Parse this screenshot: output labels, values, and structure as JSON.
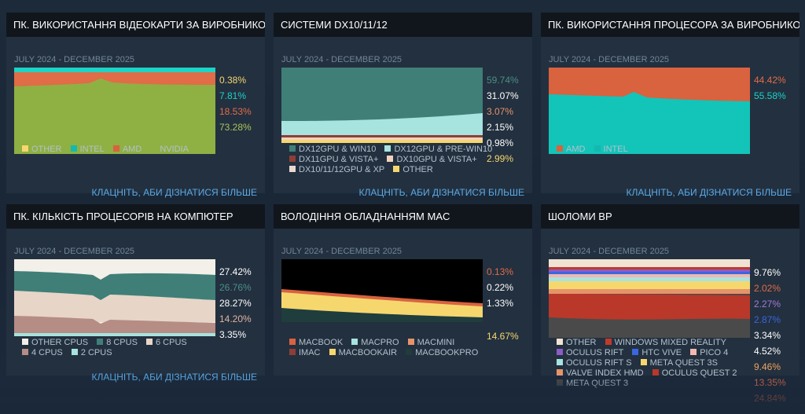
{
  "panels": [
    {
      "title": "ПК. ВИКОРИСТАННЯ ВІДЕОКАРТИ ЗА ВИРОБНИКОМ",
      "range": "JULY 2024 - DECEMBER 2025",
      "values": [
        {
          "text": "0.38%",
          "color": "#f5d76e"
        },
        {
          "text": "7.81%",
          "color": "#1dd3c6"
        },
        {
          "text": "18.53%",
          "color": "#e06c48"
        },
        {
          "text": "73.28%",
          "color": "#a8c55a"
        }
      ],
      "legend": [
        [
          {
            "label": "OTHER",
            "color": "#f5d76e"
          },
          {
            "label": "INTEL",
            "color": "#13b9b0"
          },
          {
            "label": "AMD",
            "color": "#d9623f"
          },
          {
            "label": "NVIDIA",
            "color": "#8fb043"
          }
        ]
      ],
      "link": "КЛАЦНІТЬ, АБИ ДІЗНАТИСЯ БІЛЬШЕ"
    },
    {
      "title": "СИСТЕМИ DX10/11/12",
      "range": "JULY 2024 - DECEMBER 2025",
      "values": [
        {
          "text": "59.74%",
          "color": "#4a8f85"
        },
        {
          "text": "31.07%",
          "color": "#ffffff"
        },
        {
          "text": "3.07%",
          "color": "#e5946a"
        },
        {
          "text": "2.15%",
          "color": "#ffffff"
        },
        {
          "text": "0.98%",
          "color": "#ffffff"
        },
        {
          "text": "2.99%",
          "color": "#f5d76e"
        }
      ],
      "legend": [
        [
          {
            "label": "DX12GPU & WIN10",
            "color": "#3f7f77"
          },
          {
            "label": "DX12GPU & PRE-WIN10",
            "color": "#a7e3df"
          }
        ],
        [
          {
            "label": "DX11GPU & VISTA+",
            "color": "#8e3e36"
          },
          {
            "label": "DX10GPU & VISTA+",
            "color": "#f1d2bf"
          }
        ],
        [
          {
            "label": "DX10/11/12GPU & XP",
            "color": "#e9d9cf"
          },
          {
            "label": "OTHER",
            "color": "#f5d76e"
          }
        ]
      ],
      "link": "КЛАЦНІТЬ, АБИ ДІЗНАТИСЯ БІЛЬШЕ"
    },
    {
      "title": "ПК. ВИКОРИСТАННЯ ПРОЦЕСОРА ЗА ВИРОБНИКОМ",
      "range": "JULY 2024 - DECEMBER 2025",
      "values": [
        {
          "text": "44.42%",
          "color": "#e06c48"
        },
        {
          "text": "55.58%",
          "color": "#1dd3c6"
        }
      ],
      "legend": [
        [
          {
            "label": "AMD",
            "color": "#d9623f"
          },
          {
            "label": "INTEL",
            "color": "#13b9b0"
          }
        ]
      ],
      "link": "КЛАЦНІТЬ, АБИ ДІЗНАТИСЯ БІЛЬШЕ"
    },
    {
      "title": "ПК. КІЛЬКІСТЬ ПРОЦЕСОРІВ НА КОМПЮТЕР",
      "range": "JULY 2024 - DECEMBER 2025",
      "values": [
        {
          "text": "27.42%",
          "color": "#ffffff"
        },
        {
          "text": "26.76%",
          "color": "#4a8f85"
        },
        {
          "text": "28.27%",
          "color": "#ffffff"
        },
        {
          "text": "14.20%",
          "color": "#e0b3a3"
        },
        {
          "text": "3.35%",
          "color": "#ffffff"
        }
      ],
      "legend": [
        [
          {
            "label": "OTHER CPUS",
            "color": "#f3efe9"
          },
          {
            "label": "8 CPUS",
            "color": "#3f7f77"
          },
          {
            "label": "6 CPUS",
            "color": "#e7d5c8"
          }
        ],
        [
          {
            "label": "4 CPUS",
            "color": "#b58d84"
          },
          {
            "label": "2 CPUS",
            "color": "#a7e3df"
          }
        ]
      ],
      "link": "КЛАЦНІТЬ, АБИ ДІЗНАТИСЯ БІЛЬШЕ"
    },
    {
      "title": "ВОЛОДІННЯ ОБЛАДНАННЯМ MAC",
      "range": "JULY 2024 - DECEMBER 2025",
      "values": [
        {
          "text": "0.13%",
          "color": "#e06c48"
        },
        {
          "text": "0.22%",
          "color": "#ffffff"
        },
        {
          "text": "1.33%",
          "color": "#ffffff"
        },
        {
          "text": "14.67%",
          "color": "#f5d76e"
        }
      ],
      "legend": [
        [
          {
            "label": "MACBOOK",
            "color": "#d9623f"
          },
          {
            "label": "MACPRO",
            "color": "#a7e3df"
          },
          {
            "label": "MACMINI",
            "color": "#e5946a"
          }
        ],
        [
          {
            "label": "IMAC",
            "color": "#8e3e36"
          },
          {
            "label": "MACBOOKAIR",
            "color": "#f5d76e"
          },
          {
            "label": "MACBOOKPRO",
            "color": "#1f3d3d"
          }
        ]
      ],
      "link": ""
    },
    {
      "title": "ШОЛОМИ ВР",
      "range": "JULY 2024 - DECEMBER 2025",
      "values": [
        {
          "text": "9.76%",
          "color": "#ffffff"
        },
        {
          "text": "2.02%",
          "color": "#e06c48"
        },
        {
          "text": "2.27%",
          "color": "#a07ad8"
        },
        {
          "text": "2.87%",
          "color": "#3a66e0"
        },
        {
          "text": "3.34%",
          "color": "#ffffff"
        },
        {
          "text": "4.52%",
          "color": "#ffffff"
        },
        {
          "text": "9.46%",
          "color": "#f0a35e"
        },
        {
          "text": "13.35%",
          "color": "#e06c48"
        },
        {
          "text": "24.84%",
          "color": "#d9623f"
        }
      ],
      "legend": [
        [
          {
            "label": "OTHER",
            "color": "#f1e3d3"
          },
          {
            "label": "WINDOWS MIXED REALITY",
            "color": "#c0392b"
          }
        ],
        [
          {
            "label": "OCULUS RIFT",
            "color": "#8a5cc7"
          },
          {
            "label": "HTC VIVE",
            "color": "#3a66e0"
          },
          {
            "label": "PICO 4",
            "color": "#f0b8b0"
          }
        ],
        [
          {
            "label": "OCULUS RIFT S",
            "color": "#a7e3df"
          },
          {
            "label": "META QUEST 3S",
            "color": "#f5d76e"
          }
        ],
        [
          {
            "label": "VALVE INDEX HMD",
            "color": "#e5946a"
          },
          {
            "label": "OCULUS QUEST 2",
            "color": "#b9382a"
          }
        ],
        [
          {
            "label": "META QUEST 3",
            "color": "#4a4a4a"
          }
        ]
      ],
      "link": ""
    }
  ],
  "overflow_labels": {
    "cpu_count_link": "КЛАЦНІТЬ, АБИ ДІЗНАТИСЯ БІЛЬШЕ"
  }
}
